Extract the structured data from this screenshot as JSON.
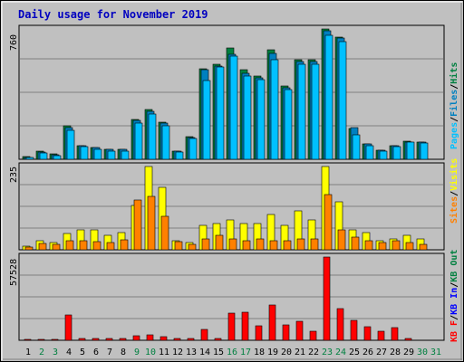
{
  "title": "Daily usage for November 2019",
  "colors": {
    "background": "#c0c0c0",
    "title": "#0000c0",
    "hits": "#008040",
    "files": "#0080c0",
    "pages": "#00c0ff",
    "visits": "#ffff00",
    "sites": "#ff8000",
    "kbin": "#0000ff",
    "kbout": "#008040",
    "kbf": "#ff0000",
    "weekend_day": "#008040",
    "weekday": "#000000"
  },
  "chart_data": [
    {
      "type": "bar",
      "panel": "hits-files-pages",
      "ymax_label": "760",
      "legend": [
        "Hits",
        "Files",
        "Pages"
      ],
      "x": [
        1,
        2,
        3,
        4,
        5,
        6,
        7,
        8,
        9,
        10,
        11,
        12,
        13,
        14,
        15,
        16,
        17,
        18,
        19,
        20,
        21,
        22,
        23,
        24,
        25,
        26,
        27,
        28,
        29,
        30,
        31
      ],
      "series": [
        {
          "name": "Hits",
          "values": [
            15,
            45,
            32,
            195,
            80,
            70,
            60,
            60,
            230,
            290,
            215,
            50,
            130,
            530,
            555,
            650,
            520,
            485,
            640,
            430,
            580,
            580,
            760,
            715,
            180,
            90,
            55,
            80,
            105,
            100,
            0
          ]
        },
        {
          "name": "Files",
          "values": [
            12,
            40,
            28,
            185,
            78,
            67,
            58,
            58,
            225,
            280,
            210,
            45,
            128,
            520,
            545,
            610,
            500,
            475,
            620,
            415,
            570,
            570,
            750,
            705,
            185,
            88,
            55,
            80,
            102,
            98,
            0
          ]
        },
        {
          "name": "Pages",
          "values": [
            8,
            35,
            22,
            170,
            72,
            60,
            50,
            50,
            210,
            265,
            195,
            40,
            120,
            460,
            540,
            600,
            485,
            465,
            580,
            405,
            555,
            555,
            725,
            685,
            140,
            80,
            50,
            75,
            100,
            95,
            0
          ]
        }
      ]
    },
    {
      "type": "bar",
      "panel": "visits-sites",
      "ymax_label": "235",
      "legend": [
        "Visits",
        "Sites"
      ],
      "x": [
        1,
        2,
        3,
        4,
        5,
        6,
        7,
        8,
        9,
        10,
        11,
        12,
        13,
        14,
        15,
        16,
        17,
        18,
        19,
        20,
        21,
        22,
        23,
        24,
        25,
        26,
        27,
        28,
        29,
        30,
        31
      ],
      "series": [
        {
          "name": "Visits",
          "values": [
            10,
            25,
            20,
            45,
            55,
            55,
            40,
            48,
            125,
            235,
            175,
            25,
            20,
            70,
            75,
            85,
            75,
            75,
            100,
            70,
            110,
            85,
            235,
            135,
            55,
            48,
            25,
            30,
            40,
            30,
            0
          ]
        },
        {
          "name": "Sites",
          "values": [
            8,
            18,
            15,
            25,
            25,
            22,
            20,
            28,
            140,
            150,
            95,
            22,
            15,
            30,
            40,
            30,
            25,
            30,
            25,
            25,
            30,
            30,
            155,
            55,
            35,
            25,
            20,
            25,
            20,
            15,
            0
          ]
        }
      ]
    },
    {
      "type": "bar",
      "panel": "kb",
      "ymax_label": "57528",
      "legend": [
        "KB F",
        "KB In",
        "KB Out"
      ],
      "x": [
        1,
        2,
        3,
        4,
        5,
        6,
        7,
        8,
        9,
        10,
        11,
        12,
        13,
        14,
        15,
        16,
        17,
        18,
        19,
        20,
        21,
        22,
        23,
        24,
        25,
        26,
        27,
        28,
        29,
        30,
        31
      ],
      "series": [
        {
          "name": "KB F",
          "values": [
            800,
            800,
            800,
            17500,
            1500,
            1500,
            1500,
            1500,
            3000,
            3500,
            2800,
            1000,
            1200,
            7500,
            1500,
            18500,
            19500,
            10000,
            24500,
            10500,
            13000,
            6500,
            57528,
            22000,
            13500,
            9500,
            6500,
            8500,
            1500,
            0,
            0
          ]
        }
      ]
    }
  ],
  "day_labels": [
    "1",
    "2",
    "3",
    "4",
    "5",
    "6",
    "7",
    "8",
    "9",
    "10",
    "11",
    "12",
    "13",
    "14",
    "15",
    "16",
    "17",
    "18",
    "19",
    "20",
    "21",
    "22",
    "23",
    "24",
    "25",
    "26",
    "27",
    "28",
    "29",
    "30",
    "31"
  ],
  "weekend_days": [
    2,
    3,
    9,
    10,
    16,
    17,
    23,
    24,
    30,
    31
  ]
}
